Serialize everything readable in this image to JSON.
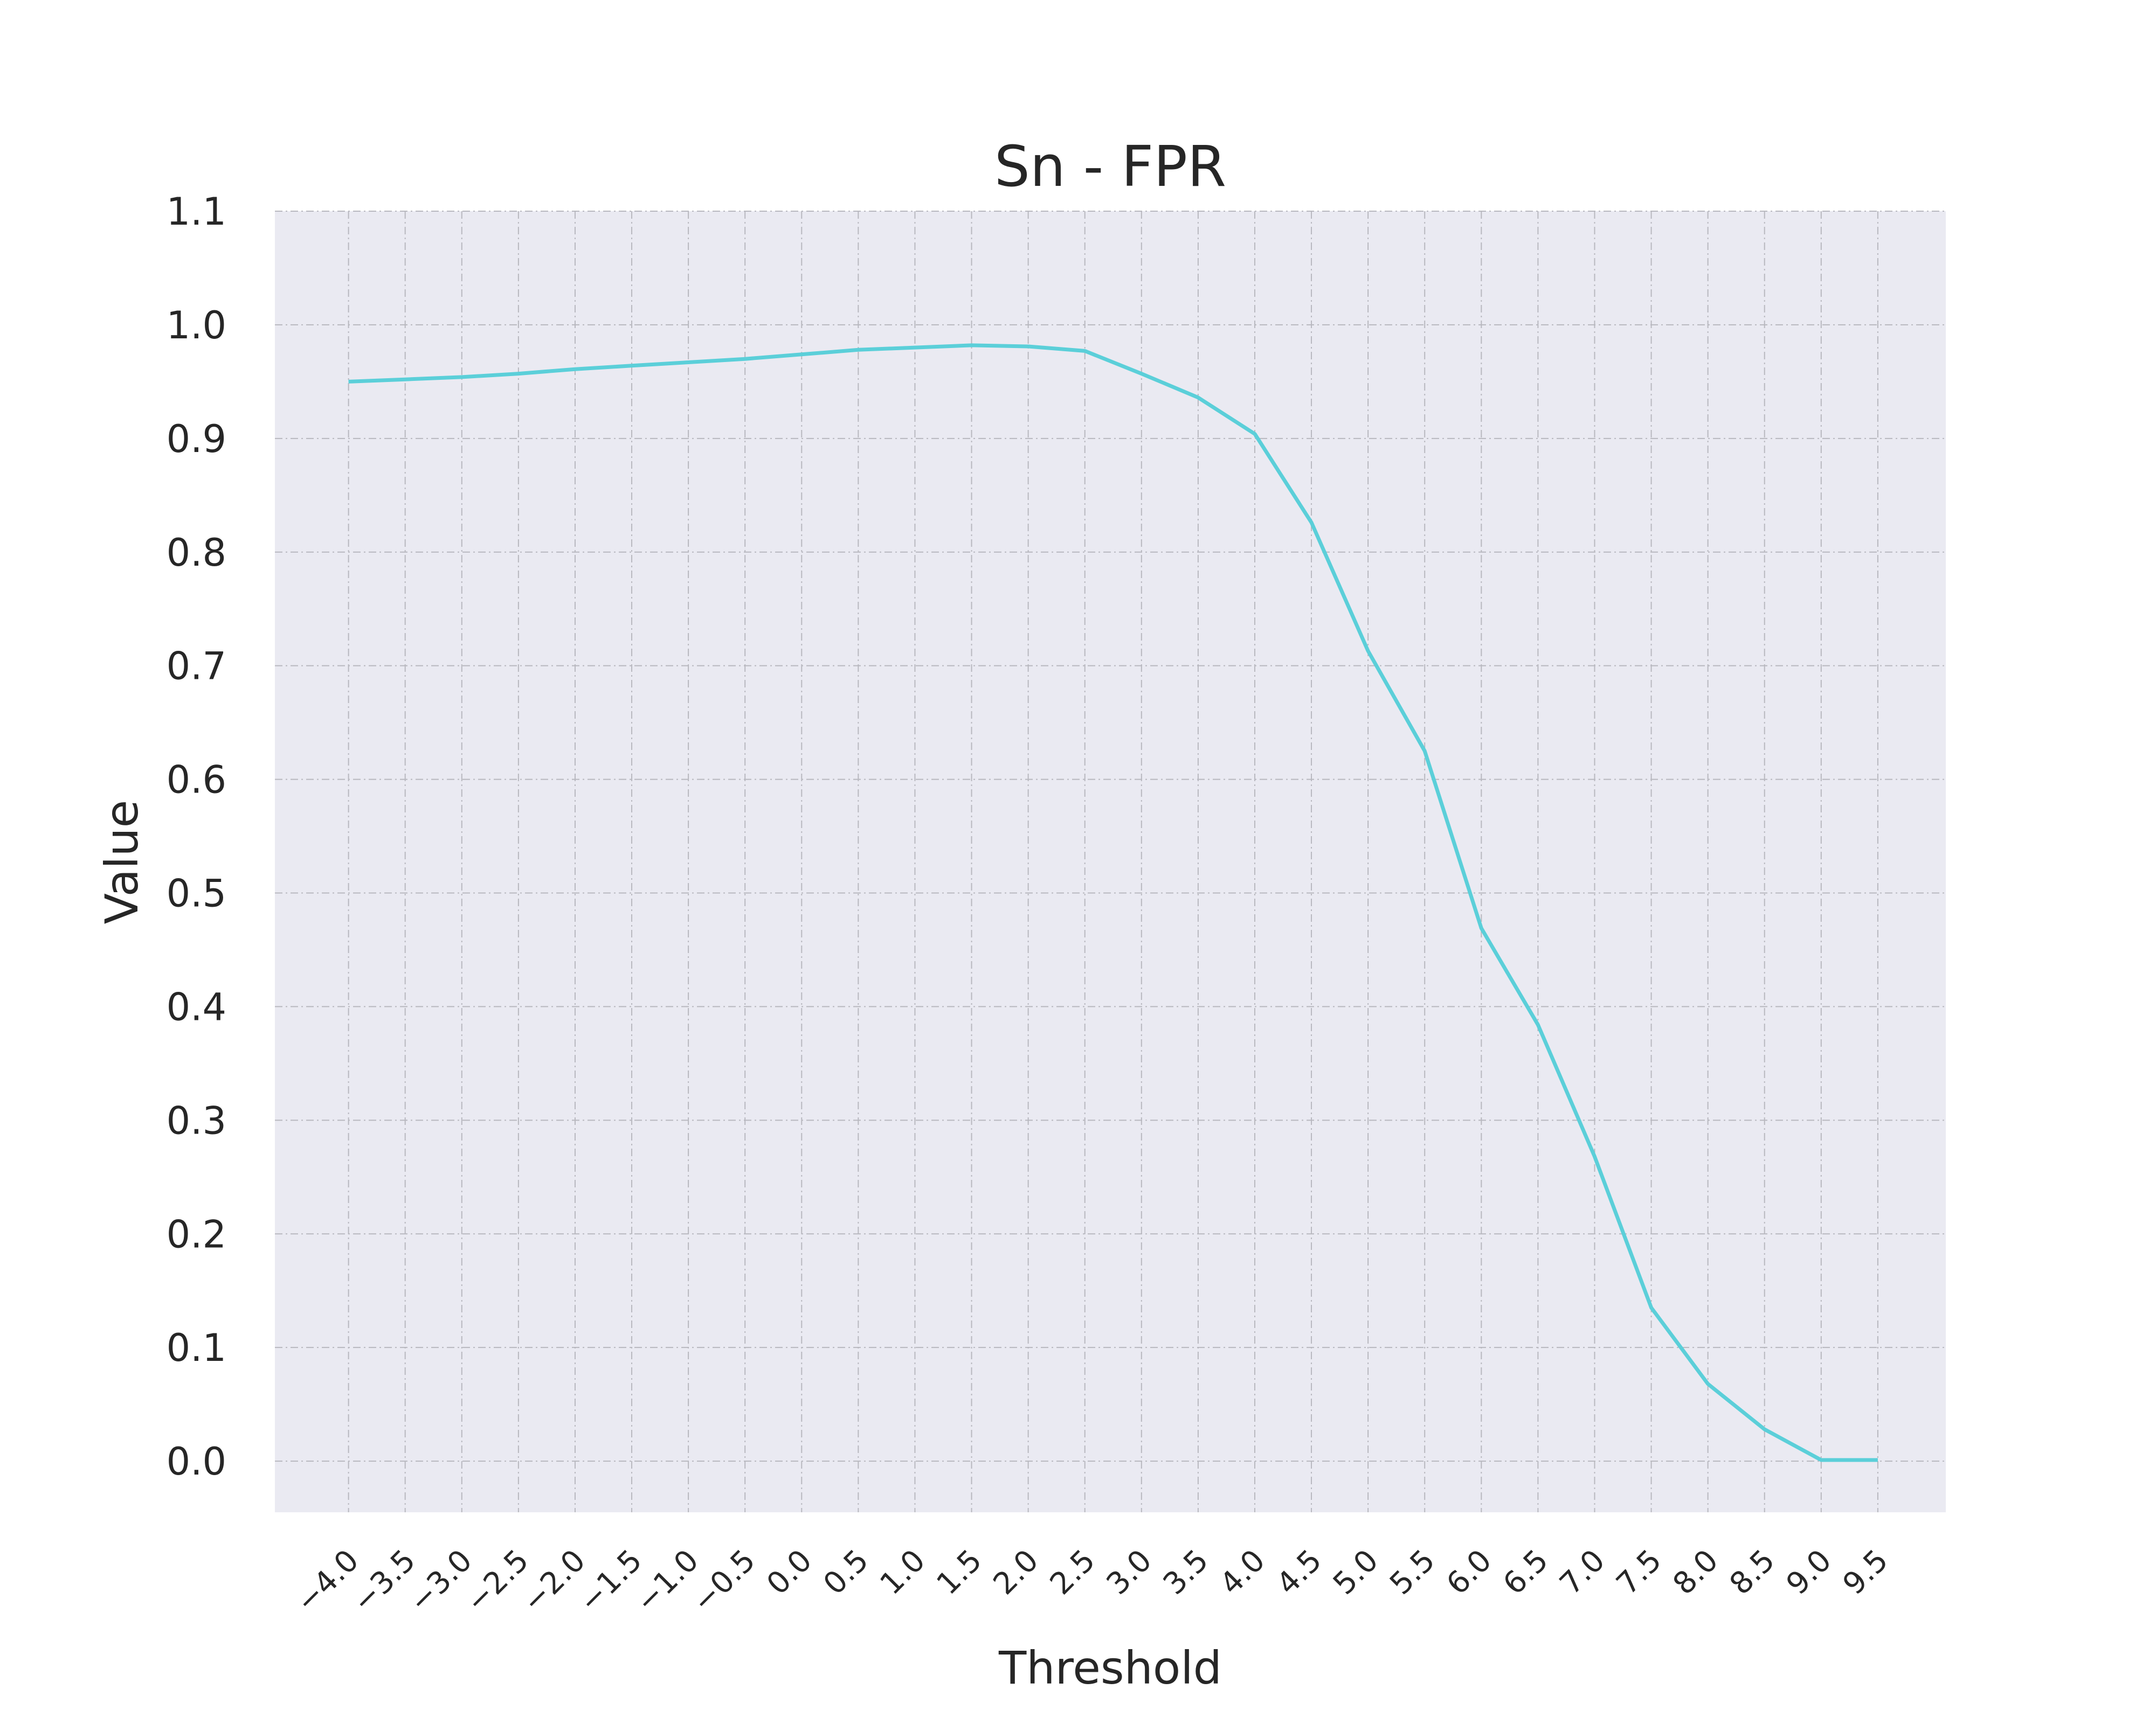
{
  "chart_data": {
    "type": "line",
    "title": "Sn - FPR",
    "xlabel": "Threshold",
    "ylabel": "Value",
    "x_ticks": [
      "−4.0",
      "−3.5",
      "−3.0",
      "−2.5",
      "−2.0",
      "−1.5",
      "−1.0",
      "−0.5",
      "0.0",
      "0.5",
      "1.0",
      "1.5",
      "2.0",
      "2.5",
      "3.0",
      "3.5",
      "4.0",
      "4.5",
      "5.0",
      "5.5",
      "6.0",
      "6.5",
      "7.0",
      "7.5",
      "8.0",
      "8.5",
      "9.0",
      "9.5"
    ],
    "y_ticks": [
      "0.0",
      "0.1",
      "0.2",
      "0.3",
      "0.4",
      "0.5",
      "0.6",
      "0.7",
      "0.8",
      "0.9",
      "1.0",
      "1.1"
    ],
    "xlim": [
      -4.65,
      10.1
    ],
    "ylim": [
      -0.045,
      1.1
    ],
    "grid": true,
    "series": [
      {
        "color": "#5bcfd9",
        "x": [
          -4.0,
          -3.5,
          -3.0,
          -2.5,
          -2.0,
          -1.5,
          -1.0,
          -0.5,
          0.0,
          0.5,
          1.0,
          1.5,
          2.0,
          2.5,
          3.0,
          3.5,
          4.0,
          4.5,
          5.0,
          5.5,
          6.0,
          6.5,
          7.0,
          7.5,
          8.0,
          8.5,
          9.0,
          9.5
        ],
        "y": [
          0.95,
          0.952,
          0.954,
          0.957,
          0.961,
          0.964,
          0.967,
          0.97,
          0.974,
          0.978,
          0.98,
          0.982,
          0.981,
          0.977,
          0.957,
          0.936,
          0.904,
          0.826,
          0.713,
          0.625,
          0.469,
          0.384,
          0.268,
          0.135,
          0.068,
          0.028,
          0.001,
          0.001
        ]
      }
    ]
  }
}
